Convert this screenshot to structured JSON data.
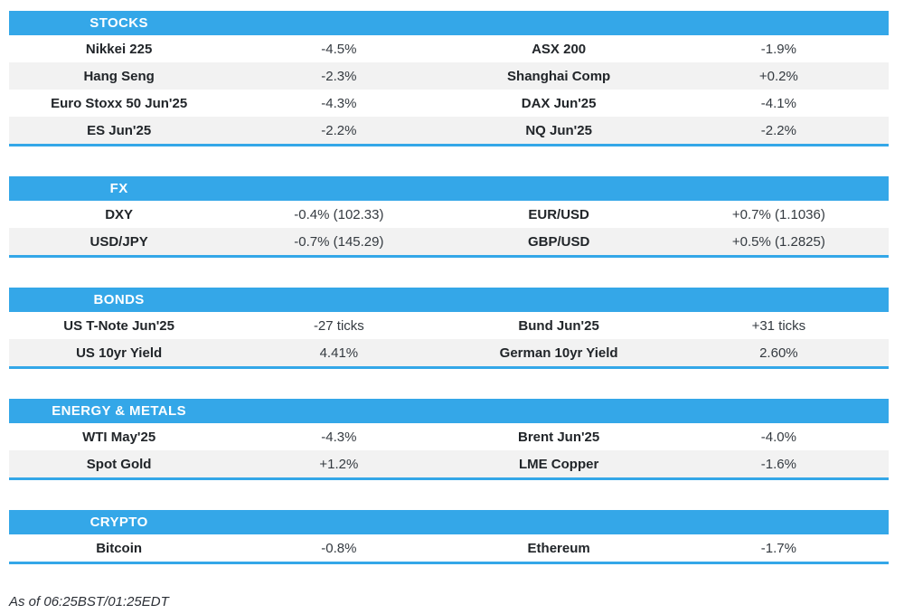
{
  "page": {
    "accent_blue": "#34a7e8",
    "alt_row_gray": "#f2f2f2",
    "footer_note": "As of 06:25BST/01:25EDT"
  },
  "sections": [
    {
      "title": "STOCKS",
      "rows": [
        {
          "left_label": "Nikkei 225",
          "left_value": "-4.5%",
          "right_label": "ASX 200",
          "right_value": "-1.9%"
        },
        {
          "left_label": "Hang Seng",
          "left_value": "-2.3%",
          "right_label": "Shanghai Comp",
          "right_value": "+0.2%"
        },
        {
          "left_label": "Euro Stoxx 50 Jun'25",
          "left_value": "-4.3%",
          "right_label": "DAX Jun'25",
          "right_value": "-4.1%"
        },
        {
          "left_label": "ES Jun'25",
          "left_value": "-2.2%",
          "right_label": "NQ Jun'25",
          "right_value": "-2.2%"
        }
      ]
    },
    {
      "title": "FX",
      "rows": [
        {
          "left_label": "DXY",
          "left_value": "-0.4% (102.33)",
          "right_label": "EUR/USD",
          "right_value": "+0.7% (1.1036)"
        },
        {
          "left_label": "USD/JPY",
          "left_value": "-0.7% (145.29)",
          "right_label": "GBP/USD",
          "right_value": "+0.5% (1.2825)"
        }
      ]
    },
    {
      "title": "BONDS",
      "rows": [
        {
          "left_label": "US T-Note Jun'25",
          "left_value": "-27 ticks",
          "right_label": "Bund Jun'25",
          "right_value": "+31 ticks"
        },
        {
          "left_label": "US 10yr Yield",
          "left_value": "4.41%",
          "right_label": "German 10yr Yield",
          "right_value": "2.60%"
        }
      ]
    },
    {
      "title": "ENERGY & METALS",
      "rows": [
        {
          "left_label": "WTI May'25",
          "left_value": "-4.3%",
          "right_label": "Brent Jun'25",
          "right_value": "-4.0%"
        },
        {
          "left_label": "Spot Gold",
          "left_value": "+1.2%",
          "right_label": "LME Copper",
          "right_value": "-1.6%"
        }
      ]
    },
    {
      "title": "CRYPTO",
      "rows": [
        {
          "left_label": "Bitcoin",
          "left_value": "-0.8%",
          "right_label": "Ethereum",
          "right_value": "-1.7%"
        }
      ]
    }
  ]
}
